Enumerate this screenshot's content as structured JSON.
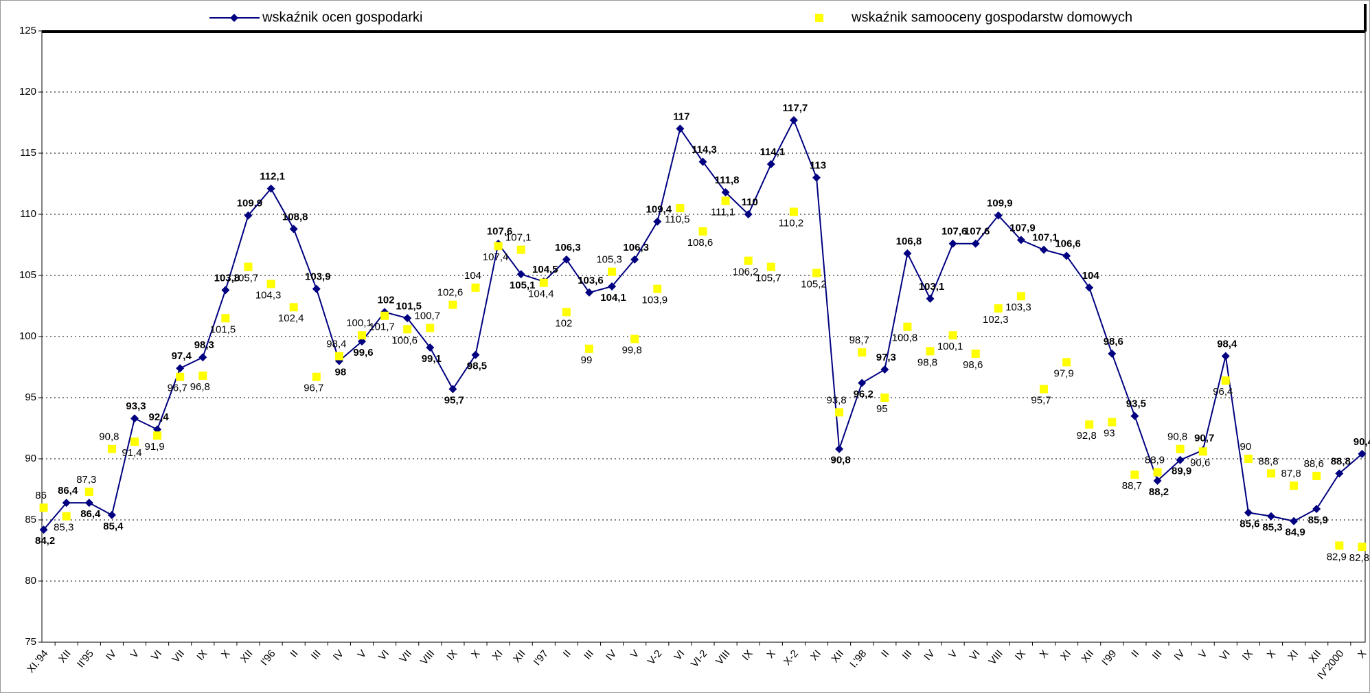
{
  "chart_data": {
    "type": "line",
    "categories": [
      "XI.'94",
      "XII",
      "II'95",
      "IV",
      "V",
      "VI",
      "VII",
      "IX",
      "X",
      "XII",
      "I'96",
      "II",
      "III",
      "IV",
      "V",
      "VI",
      "VII",
      "VIII",
      "IX",
      "X",
      "XI",
      "XII",
      "I'97",
      "II",
      "III",
      "IV",
      "V",
      "V-2",
      "VI",
      "VI-2",
      "VIII",
      "IX",
      "X",
      "X-2",
      "XI",
      "XII",
      "I.'98",
      "II",
      "III",
      "IV",
      "V",
      "VI",
      "VIII",
      "IX",
      "X",
      "XI",
      "XII",
      "I'99",
      "II",
      "III",
      "IV",
      "V",
      "VI",
      "IX",
      "X",
      "XI",
      "XII",
      "IV'2000",
      "X"
    ],
    "series": [
      {
        "name": "wskaźnik ocen gospodarki",
        "color": "#000080",
        "marker": "diamond",
        "line": true,
        "values": [
          84.2,
          86.4,
          86.4,
          85.4,
          93.3,
          92.4,
          97.4,
          98.3,
          103.8,
          109.9,
          112.1,
          108.8,
          103.9,
          98,
          99.6,
          102,
          101.5,
          99.1,
          95.7,
          98.5,
          107.6,
          105.1,
          104.5,
          106.3,
          103.6,
          104.1,
          106.3,
          109.4,
          117,
          114.3,
          111.8,
          110,
          114.1,
          117.7,
          113,
          90.8,
          96.2,
          97.3,
          106.8,
          103.1,
          107.6,
          107.6,
          109.9,
          107.9,
          107.1,
          106.6,
          104,
          98.6,
          93.5,
          88.2,
          89.9,
          90.7,
          98.4,
          85.6,
          85.3,
          84.9,
          85.9,
          88.8,
          90.4
        ],
        "value_labels": [
          "84,2",
          "86,4",
          "86,4",
          "85,4",
          "93,3",
          "92,4",
          "97,4",
          "98,3",
          "103,8",
          "109,9",
          "112,1",
          "108,8",
          "103,9",
          "98",
          "99,6",
          "102",
          "101,5",
          "99,1",
          "95,7",
          "98,5",
          "107,6",
          "105,1",
          "104,5",
          "106,3",
          "103,6",
          "104,1",
          "106,3",
          "109,4",
          "117",
          "114,3",
          "111,8",
          "110",
          "114,1",
          "117,7",
          "113",
          "90,8",
          "96,2",
          "97,3",
          "106,8",
          "103,1",
          "107,6",
          "107,6",
          "109,9",
          "107,9",
          "107,1",
          "106,6",
          "104",
          "98,6",
          "93,5",
          "88,2",
          "89,9",
          "90,7",
          "98,4",
          "85,6",
          "85,3",
          "84,9",
          "85,9",
          "88,8",
          "90,4"
        ]
      },
      {
        "name": "wskaźnik samooceny gospodarstw domowych",
        "color": "#ffff00",
        "marker": "square",
        "line": false,
        "values": [
          86,
          85.3,
          87.3,
          90.8,
          91.4,
          91.9,
          96.7,
          96.8,
          101.5,
          105.7,
          104.3,
          102.4,
          96.7,
          98.4,
          100.1,
          101.7,
          100.6,
          100.7,
          102.6,
          104,
          107.4,
          107.1,
          104.4,
          102,
          99,
          105.3,
          99.8,
          103.9,
          110.5,
          108.6,
          111.1,
          106.2,
          105.7,
          110.2,
          105.2,
          93.8,
          98.7,
          95,
          100.8,
          98.8,
          100.1,
          98.6,
          102.3,
          103.3,
          95.7,
          97.9,
          92.8,
          93,
          88.7,
          88.9,
          90.8,
          90.6,
          96.4,
          90,
          88.8,
          87.8,
          88.6,
          82.9,
          82.8
        ],
        "value_labels": [
          "86",
          "85,3",
          "87,3",
          "90,8",
          "91,4",
          "91,9",
          "96,7",
          "96,8",
          "101,5",
          "105,7",
          "104,3",
          "102,4",
          "96,7",
          "98,4",
          "100,1",
          "101,7",
          "100,6",
          "100,7",
          "102,6",
          "104",
          "107,4",
          "107,1",
          "104,4",
          "102",
          "99",
          "105,3",
          "99,8",
          "103,9",
          "110,5",
          "108,6",
          "111,1",
          "106,2",
          "105,7",
          "110,2",
          "105,2",
          "93,8",
          "98,7",
          "95",
          "100,8",
          "98,8",
          "100,1",
          "98,6",
          "102,3",
          "103,3",
          "95,7",
          "97,9",
          "92,8",
          "93",
          "88,7",
          "88,9",
          "90,8",
          "90,6",
          "96,4",
          "90",
          "88,8",
          "87,8",
          "88,6",
          "82,9",
          "82,8"
        ]
      }
    ],
    "ylim": [
      75,
      125
    ],
    "yticks": [
      75,
      80,
      85,
      90,
      95,
      100,
      105,
      110,
      115,
      120,
      125
    ],
    "grid": true,
    "legend": "top"
  }
}
